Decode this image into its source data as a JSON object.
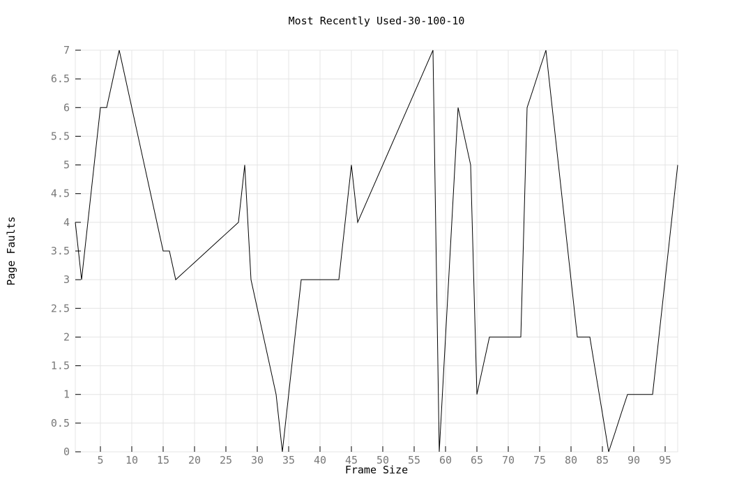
{
  "chart_data": {
    "type": "line",
    "title": "Most Recently Used-30-100-10",
    "xlabel": "Frame Size",
    "ylabel": "Page Faults",
    "xlim": [
      1,
      97
    ],
    "ylim": [
      0,
      7
    ],
    "x_ticks": [
      5,
      10,
      15,
      20,
      25,
      30,
      35,
      40,
      45,
      50,
      55,
      60,
      65,
      70,
      75,
      80,
      85,
      90,
      95
    ],
    "y_ticks": [
      0,
      0.5,
      1,
      1.5,
      2,
      2.5,
      3,
      3.5,
      4,
      4.5,
      5,
      5.5,
      6,
      6.5,
      7
    ],
    "grid": true,
    "line_color": "#000000",
    "grid_color": "#e4e4e4",
    "series": [
      {
        "x": [
          1,
          2,
          3,
          4,
          5,
          6,
          7,
          8,
          9,
          10,
          11,
          12,
          13,
          14,
          15,
          16,
          17,
          18,
          19,
          20,
          21,
          22,
          23,
          24,
          25,
          26,
          27,
          28,
          29,
          30,
          31,
          32,
          33,
          34,
          35,
          36,
          37,
          38,
          39,
          40,
          41,
          42,
          43,
          44,
          45,
          46,
          47,
          48,
          49,
          50,
          51,
          52,
          53,
          54,
          55,
          56,
          57,
          58,
          59,
          60,
          61,
          62,
          63,
          64,
          65,
          66,
          67,
          68,
          69,
          70,
          71,
          72,
          73,
          74,
          75,
          76,
          77,
          78,
          79,
          80,
          81,
          82,
          83,
          84,
          85,
          86,
          87,
          88,
          89,
          90,
          91,
          92,
          93,
          94,
          95,
          96,
          97
        ],
        "y": [
          4,
          3,
          4,
          5,
          6,
          6,
          6.5,
          7,
          6.5,
          6,
          5.5,
          5,
          4.5,
          4,
          3.5,
          3.5,
          3,
          3.1,
          3.2,
          3.3,
          3.4,
          3.5,
          3.6,
          3.7,
          3.8,
          3.9,
          4,
          5,
          3,
          2.5,
          2,
          1.5,
          1,
          0,
          1,
          2,
          3,
          3,
          3,
          3,
          3,
          3,
          3,
          4,
          5,
          4,
          4.25,
          4.5,
          4.75,
          5,
          5.25,
          5.5,
          5.75,
          6,
          6.25,
          6.5,
          6.75,
          7,
          0,
          2,
          4,
          6,
          5.5,
          5,
          1,
          1.5,
          2,
          2,
          2,
          2,
          2,
          2,
          6,
          6.33,
          6.67,
          7,
          6,
          5,
          4,
          3,
          2,
          2,
          2,
          1.33,
          0.67,
          0,
          0.33,
          0.67,
          1,
          1,
          1,
          1,
          1,
          2,
          3,
          4,
          5
        ]
      }
    ]
  }
}
